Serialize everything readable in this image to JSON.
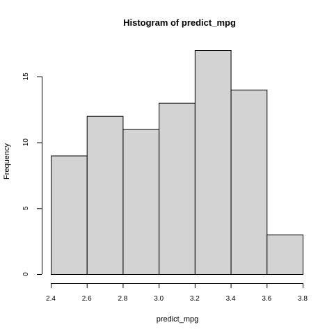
{
  "chart_data": {
    "type": "bar",
    "title": "Histogram of predict_mpg",
    "xlabel": "predict_mpg",
    "ylabel": "Frequency",
    "bins": [
      {
        "start": 2.4,
        "end": 2.6,
        "count": 9
      },
      {
        "start": 2.6,
        "end": 2.8,
        "count": 12
      },
      {
        "start": 2.8,
        "end": 3.0,
        "count": 11
      },
      {
        "start": 3.0,
        "end": 3.2,
        "count": 13
      },
      {
        "start": 3.2,
        "end": 3.4,
        "count": 17
      },
      {
        "start": 3.4,
        "end": 3.6,
        "count": 14
      },
      {
        "start": 3.6,
        "end": 3.8,
        "count": 3
      }
    ],
    "xlim": [
      2.4,
      3.8
    ],
    "ylim": [
      0,
      17
    ],
    "xticks": [
      "2.4",
      "2.6",
      "2.8",
      "3.0",
      "3.2",
      "3.4",
      "3.6",
      "3.8"
    ],
    "yticks": [
      "0",
      "5",
      "10",
      "15"
    ],
    "grid": false,
    "colors": {
      "bar_fill": "#d3d3d3",
      "bar_stroke": "#000000"
    }
  }
}
